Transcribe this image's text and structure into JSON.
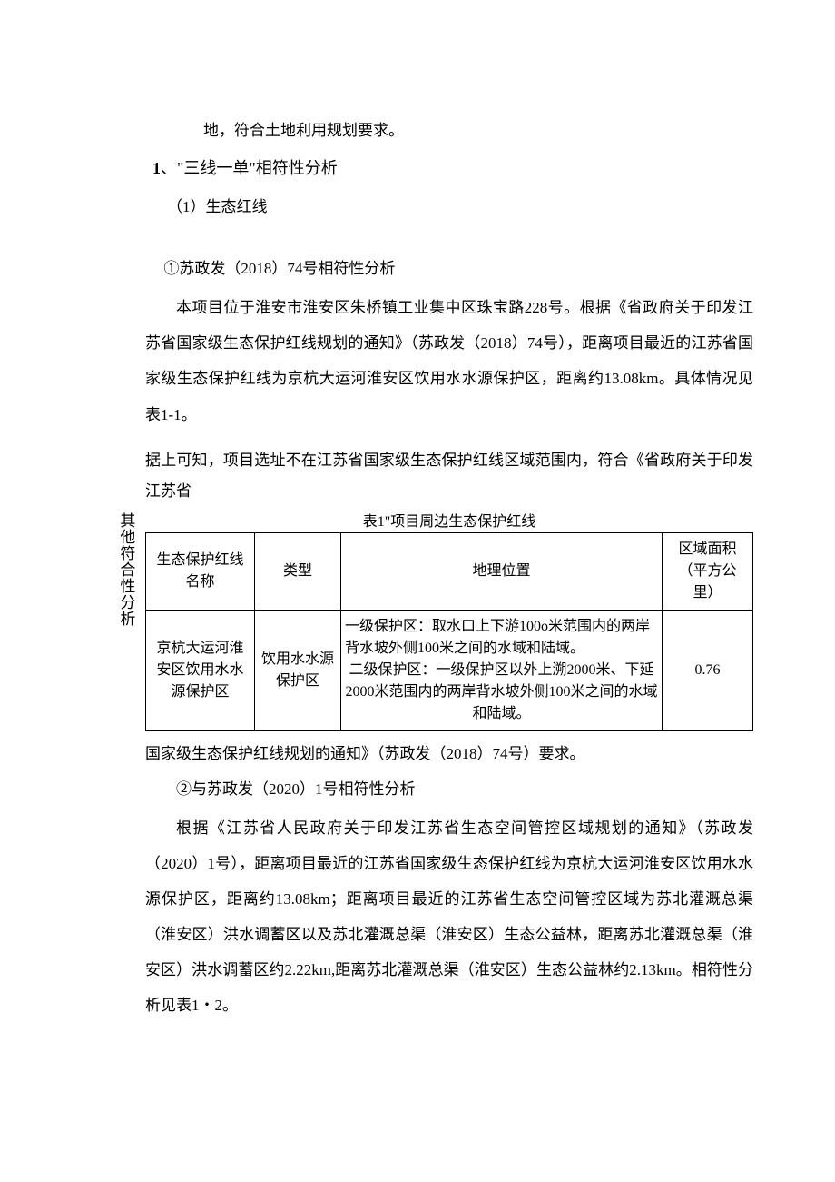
{
  "vertical_label": "其他符合性分析",
  "intro_line": "地，符合土地利用规划要求。",
  "heading_num": "1",
  "heading_text": "、\"三线一单\"相符性分析",
  "subheading_1": "（1）生态红线",
  "para_1": "①苏政发（2018）74号相符性分析",
  "para_2": "本项目位于淮安市淮安区朱桥镇工业集中区珠宝路228号。根据《省政府关于印发江苏省国家级生态保护红线规划的通知》（苏政发（2018）74号），距离项目最近的江苏省国家级生态保护红线为京杭大运河淮安区饮用水水源保护区，距离约13.08km。具体情况见表1-1。",
  "para_3": "据上可知，项目选址不在江苏省国家级生态保护红线区域范围内，符合《省政府关于印发江苏省",
  "table_caption": "表1\"项目周边生态保护红线",
  "table": {
    "headers": {
      "h1": "生态保护红线名称",
      "h2": "类型",
      "h3": "地理位置",
      "h4": "区域面积（平方公里）"
    },
    "row": {
      "c1": "京杭大运河淮安区饮用水水源保护区",
      "c2": "饮用水水源保护区",
      "c3_1": "一级保护区：取水口上下游100o米范围内的两岸背水坡外侧100米之间的水域和陆域。",
      "c3_2": "二级保护区：一级保护区以外上溯2000米、下延2000米范围内的两岸背水坡外侧100米之间的水域和陆域。",
      "c4": "0.76"
    }
  },
  "para_4": "国家级生态保护红线规划的通知》（苏政发（2018）74号）要求。",
  "para_5": "②与苏政发（2020）1号相符性分析",
  "para_6": "根据《江苏省人民政府关于印发江苏省生态空间管控区域规划的通知》（苏政发（2020）1号），距离项目最近的江苏省国家级生态保护红线为京杭大运河淮安区饮用水水源保护区，距离约13.08km；距离项目最近的江苏省生态空间管控区域为苏北灌溉总渠（淮安区）洪水调蓄区以及苏北灌溉总渠（淮安区）生态公益林，距离苏北灌溉总渠（淮安区）洪水调蓄区约2.22km,距离苏北灌溉总渠（淮安区）生态公益林约2.13km。相符性分析见表1・2。"
}
